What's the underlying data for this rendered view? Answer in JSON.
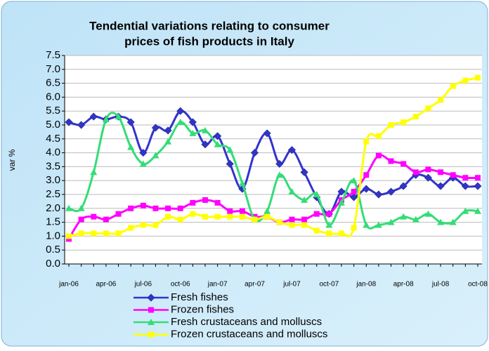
{
  "chart_data": {
    "type": "line",
    "title": [
      "Tendential variations relating to consumer",
      "prices of fish products in Italy"
    ],
    "y_label": "var %",
    "categories": [
      "jan-06",
      null,
      null,
      "apr-06",
      null,
      null,
      "jul-06",
      null,
      null,
      "oct-06",
      null,
      null,
      "jan-07",
      null,
      null,
      "apr-07",
      null,
      null,
      "jul-07",
      null,
      null,
      "oct-07",
      null,
      null,
      "jan-08",
      null,
      null,
      "apr-08",
      null,
      null,
      "jul-08",
      null,
      null,
      "oct-08"
    ],
    "ylim": [
      0,
      7.5
    ],
    "yticks": [
      {
        "value": 0,
        "label": "0.0"
      },
      0.5,
      {
        "value": 1,
        "label": "1.0"
      },
      1.5,
      {
        "value": 2,
        "label": "2.0"
      },
      2.5,
      {
        "value": 3,
        "label": "3.0"
      },
      3.5,
      {
        "value": 4,
        "label": "4.0"
      },
      4.5,
      {
        "value": 5,
        "label": "5.0"
      },
      5.5,
      {
        "value": 6,
        "label": "6.0"
      },
      6.5,
      {
        "value": 7,
        "label": "7.0"
      },
      7.5
    ],
    "grid": true,
    "legend": "bottom",
    "series": [
      {
        "name": "Fresh fishes",
        "color": "#3333cc",
        "marker": "diamond",
        "values": [
          5.1,
          5.0,
          5.3,
          5.2,
          5.3,
          5.1,
          4.0,
          4.9,
          4.8,
          5.5,
          5.1,
          4.3,
          4.6,
          3.6,
          2.7,
          4.0,
          4.7,
          3.6,
          4.1,
          3.3,
          2.4,
          1.8,
          2.6,
          2.4,
          2.7,
          2.5,
          2.6,
          2.8,
          3.2,
          3.1,
          2.8,
          3.1,
          2.8,
          2.8
        ]
      },
      {
        "name": "Frozen fishes",
        "color": "#ff00ff",
        "marker": "square",
        "values": [
          0.9,
          1.6,
          1.7,
          1.6,
          1.8,
          2.0,
          2.1,
          2.0,
          2.0,
          2.0,
          2.2,
          2.3,
          2.2,
          1.9,
          1.9,
          1.7,
          1.7,
          1.5,
          1.6,
          1.6,
          1.8,
          1.8,
          2.3,
          2.6,
          3.2,
          3.9,
          3.7,
          3.6,
          3.3,
          3.4,
          3.3,
          3.2,
          3.1,
          3.1
        ]
      },
      {
        "name": "Fresh crustaceans and molluscs",
        "color": "#33dd77",
        "marker": "triangle",
        "values": [
          2.0,
          2.0,
          3.3,
          5.2,
          5.3,
          4.2,
          3.6,
          3.9,
          4.4,
          5.1,
          4.7,
          4.8,
          4.3,
          4.1,
          2.9,
          1.6,
          1.9,
          3.2,
          2.6,
          2.3,
          2.5,
          1.4,
          2.2,
          3.0,
          1.4,
          1.4,
          1.5,
          1.7,
          1.6,
          1.8,
          1.5,
          1.5,
          1.9,
          1.9
        ]
      },
      {
        "name": "Frozen crustaceans and molluscs",
        "color": "#ffff00",
        "marker": "square",
        "values": [
          1.0,
          1.1,
          1.1,
          1.1,
          1.1,
          1.3,
          1.4,
          1.4,
          1.7,
          1.6,
          1.8,
          1.7,
          1.7,
          1.7,
          1.7,
          1.6,
          1.7,
          1.5,
          1.4,
          1.4,
          1.2,
          1.1,
          1.1,
          1.3,
          4.4,
          4.6,
          5.0,
          5.1,
          5.3,
          5.6,
          5.9,
          6.4,
          6.6,
          6.7
        ]
      }
    ]
  }
}
